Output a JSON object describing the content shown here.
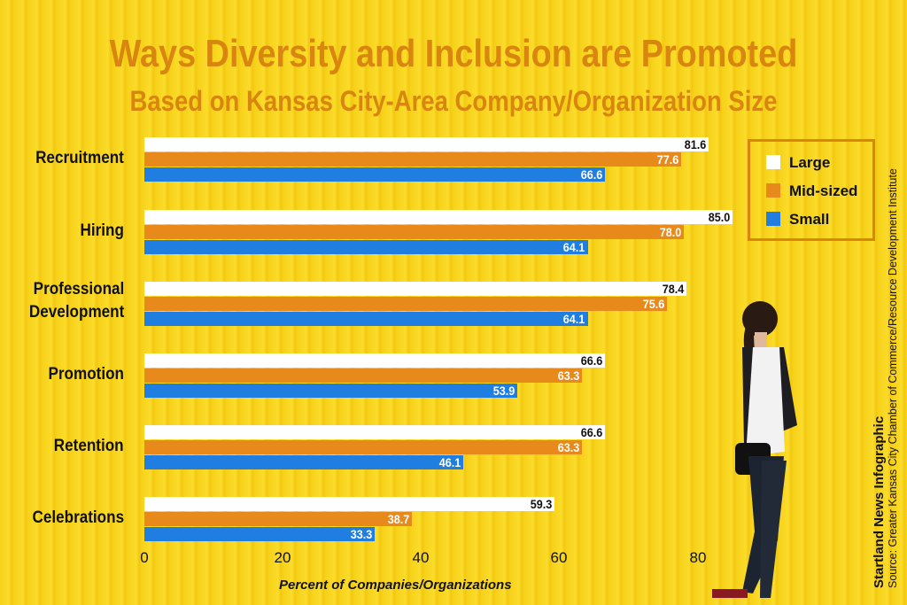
{
  "chart_data": {
    "type": "bar",
    "orientation": "horizontal",
    "title": "Ways Diversity and Inclusion are Promoted",
    "subtitle": "Based on Kansas City-Area Company/Organization Size",
    "categories": [
      "Recruitment",
      "Hiring",
      "Professional Development",
      "Promotion",
      "Retention",
      "Celebrations"
    ],
    "series": [
      {
        "name": "Large",
        "color": "#ffffff",
        "values": [
          81.6,
          85.0,
          78.4,
          66.6,
          66.6,
          59.3
        ]
      },
      {
        "name": "Mid-sized",
        "color": "#e8891c",
        "values": [
          77.6,
          78.0,
          75.6,
          63.3,
          63.3,
          38.7
        ]
      },
      {
        "name": "Small",
        "color": "#1f7ee0",
        "values": [
          66.6,
          64.1,
          64.1,
          53.9,
          46.1,
          33.3
        ]
      }
    ],
    "xlabel": "Percent of Companies/Organizations",
    "xticks": [
      0,
      20,
      40,
      60,
      80
    ],
    "xlim": [
      0,
      90
    ],
    "grid": false,
    "legend": "top-right"
  },
  "credit": {
    "publisher": "Startland News Infographic",
    "source": "Source: Greater Kansas City Chamber of Commerce/Resource Development Institute"
  }
}
